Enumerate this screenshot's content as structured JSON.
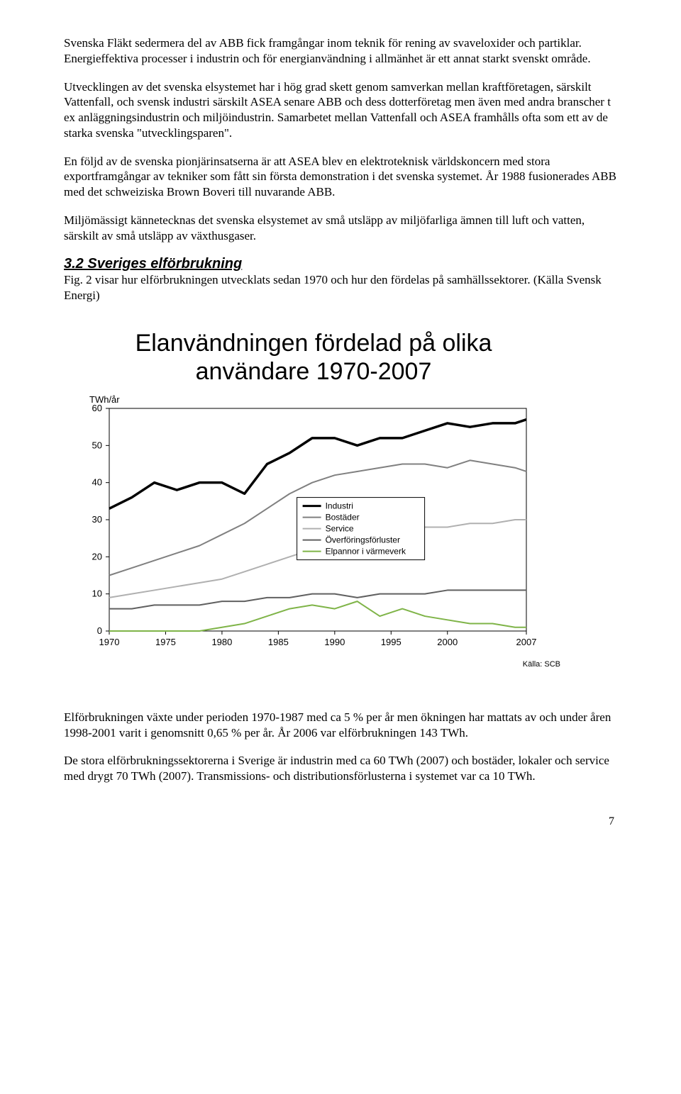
{
  "paragraphs": {
    "p1": "Svenska Fläkt sedermera del av ABB fick framgångar inom teknik för rening av svaveloxider och partiklar. Energieffektiva processer i industrin och för energianvändning i allmänhet är ett annat starkt svenskt område.",
    "p2": "Utvecklingen av det svenska elsystemet har i hög grad skett genom samverkan mellan kraftföretagen, särskilt Vattenfall, och svensk industri särskilt ASEA senare ABB och dess dotterföretag men även med andra branscher t ex anläggningsindustrin och miljöindustrin. Samarbetet mellan Vattenfall och ASEA framhålls ofta som ett av de starka svenska \"utvecklingsparen\".",
    "p3": "En följd av de svenska pionjärinsatserna är att ASEA blev en elektroteknisk världskoncern med stora exportframgångar av tekniker som fått sin första demonstration i det svenska systemet. År 1988 fusionerades ABB med det schweiziska Brown Boveri till nuvarande ABB.",
    "p4": "Miljömässigt kännetecknas det svenska elsystemet av små utsläpp av miljöfarliga ämnen till luft och vatten, särskilt av små utsläpp av växthusgaser.",
    "p5": "Fig. 2 visar hur elförbrukningen utvecklats sedan 1970 och hur den fördelas på samhällssektorer. (Källa Svensk Energi)",
    "p6": "Elförbrukningen växte under perioden 1970-1987 med ca 5 % per år men ökningen har mattats av och under åren 1998-2001 varit i genomsnitt 0,65 % per år. År 2006 var elförbrukningen 143 TWh.",
    "p7": "De stora elförbrukningssektorerna i Sverige är industrin med ca 60 TWh (2007) och bostäder, lokaler och service med drygt 70 TWh (2007). Transmissions- och distributionsförlusterna i systemet var ca 10 TWh."
  },
  "section_heading": "3.2 Sveriges elförbrukning",
  "chart": {
    "type": "line",
    "title_line1": "Elanvändningen fördelad på olika",
    "title_line2": "användare 1970-2007",
    "y_label": "TWh/år",
    "background_color": "#ffffff",
    "axis_color": "#000000",
    "grid_color": "#000000",
    "label_fontsize": 13,
    "title_fontsize": 34,
    "xlim": [
      1970,
      2007
    ],
    "ylim": [
      0,
      60
    ],
    "x_ticks": [
      1970,
      1975,
      1980,
      1985,
      1990,
      1995,
      2000,
      2007
    ],
    "y_ticks": [
      0,
      10,
      20,
      30,
      40,
      50,
      60
    ],
    "legend": {
      "items": [
        "Industri",
        "Bostäder",
        "Service",
        "Överföringsförluster",
        "Elpannor i värmeverk"
      ],
      "colors": [
        "#000000",
        "#808080",
        "#b0b0b0",
        "#606060",
        "#7fb448"
      ],
      "box_color": "#000000",
      "fontsize": 12
    },
    "series": [
      {
        "name": "Industri",
        "color": "#000000",
        "width": 3.5,
        "x": [
          1970,
          1972,
          1974,
          1976,
          1978,
          1980,
          1982,
          1984,
          1986,
          1988,
          1990,
          1992,
          1994,
          1996,
          1998,
          2000,
          2002,
          2004,
          2006,
          2007
        ],
        "y": [
          33,
          36,
          40,
          38,
          40,
          40,
          37,
          45,
          48,
          52,
          52,
          50,
          52,
          52,
          54,
          56,
          55,
          56,
          56,
          57
        ]
      },
      {
        "name": "Bostäder",
        "color": "#808080",
        "width": 2,
        "x": [
          1970,
          1972,
          1974,
          1976,
          1978,
          1980,
          1982,
          1984,
          1986,
          1988,
          1990,
          1992,
          1994,
          1996,
          1998,
          2000,
          2002,
          2004,
          2006,
          2007
        ],
        "y": [
          15,
          17,
          19,
          21,
          23,
          26,
          29,
          33,
          37,
          40,
          42,
          43,
          44,
          45,
          45,
          44,
          46,
          45,
          44,
          43
        ]
      },
      {
        "name": "Service",
        "color": "#b0b0b0",
        "width": 2,
        "x": [
          1970,
          1972,
          1974,
          1976,
          1978,
          1980,
          1982,
          1984,
          1986,
          1988,
          1990,
          1992,
          1994,
          1996,
          1998,
          2000,
          2002,
          2004,
          2006,
          2007
        ],
        "y": [
          9,
          10,
          11,
          12,
          13,
          14,
          16,
          18,
          20,
          22,
          24,
          25,
          26,
          27,
          28,
          28,
          29,
          29,
          30,
          30
        ]
      },
      {
        "name": "Överföringsförluster",
        "color": "#606060",
        "width": 2,
        "x": [
          1970,
          1972,
          1974,
          1976,
          1978,
          1980,
          1982,
          1984,
          1986,
          1988,
          1990,
          1992,
          1994,
          1996,
          1998,
          2000,
          2002,
          2004,
          2006,
          2007
        ],
        "y": [
          6,
          6,
          7,
          7,
          7,
          8,
          8,
          9,
          9,
          10,
          10,
          9,
          10,
          10,
          10,
          11,
          11,
          11,
          11,
          11
        ]
      },
      {
        "name": "Elpannor i värmeverk",
        "color": "#7fb448",
        "width": 2,
        "x": [
          1970,
          1972,
          1974,
          1976,
          1978,
          1980,
          1982,
          1984,
          1986,
          1988,
          1990,
          1992,
          1994,
          1996,
          1998,
          2000,
          2002,
          2004,
          2006,
          2007
        ],
        "y": [
          0,
          0,
          0,
          0,
          0,
          1,
          2,
          4,
          6,
          7,
          6,
          8,
          4,
          6,
          4,
          3,
          2,
          2,
          1,
          1
        ]
      }
    ],
    "source": "Källa: SCB"
  },
  "page_number": "7"
}
